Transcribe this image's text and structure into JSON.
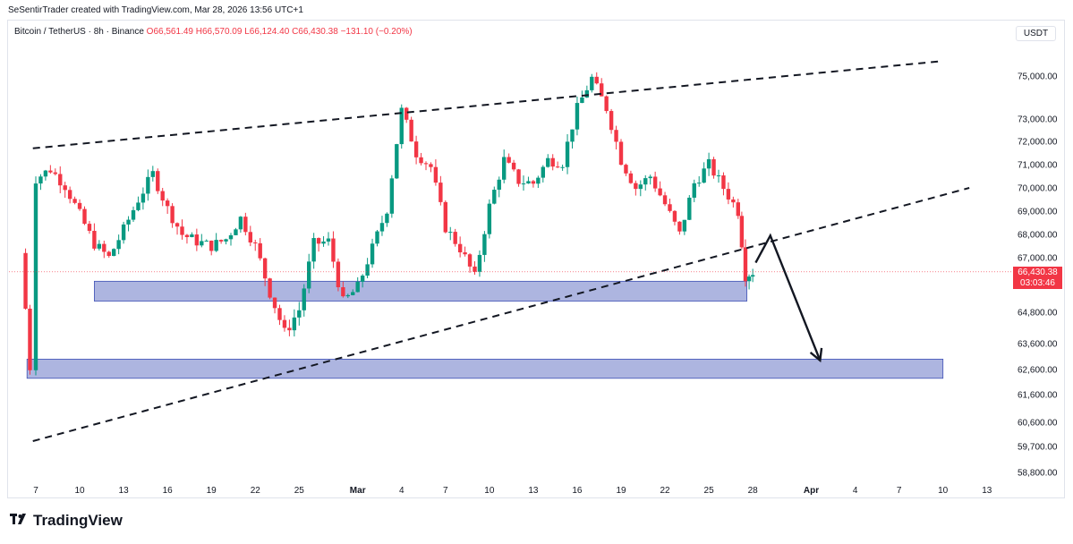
{
  "header": {
    "credit": "SeSentirTrader created with TradingView.com, Mar 28, 2026 13:56 UTC+1"
  },
  "legend": {
    "symbol": "Bitcoin / TetherUS · 8h · Binance",
    "open": "O66,561.49",
    "high": "H66,570.09",
    "low": "L66,124.40",
    "close": "C66,430.38",
    "change": "−131.10 (−0.20%)"
  },
  "currency_button": "USDT",
  "last_price": {
    "price": "66,430.38",
    "countdown": "03:03:46"
  },
  "brand": {
    "name": "TradingView"
  },
  "colors": {
    "up": "#089981",
    "down": "#f23645",
    "zone": "#9fa8da",
    "zone_border": "#3f51b5",
    "line": "#131722"
  },
  "chart_data": {
    "type": "candlestick",
    "title": "Bitcoin / TetherUS · 8h · Binance",
    "y_axis_ticks": [
      75000,
      73000,
      72000,
      71000,
      70000,
      69000,
      68000,
      67000,
      64800,
      63600,
      62600,
      61600,
      60600,
      59700,
      58800
    ],
    "y_axis_labels": [
      "75,000.00",
      "73,000.00",
      "72,000.00",
      "71,000.00",
      "70,000.00",
      "69,000.00",
      "68,000.00",
      "67,000.00",
      "64,800.00",
      "63,600.00",
      "62,600.00",
      "61,600.00",
      "60,600.00",
      "59,700.00",
      "58,800.00"
    ],
    "x_axis_labels": [
      "7",
      "10",
      "13",
      "16",
      "19",
      "22",
      "25",
      "Mar",
      "4",
      "7",
      "10",
      "13",
      "16",
      "19",
      "22",
      "25",
      "28",
      "Apr",
      "4",
      "7",
      "10",
      "13"
    ],
    "x_axis_dates": [
      "Feb 7",
      "Feb 10",
      "Feb 13",
      "Feb 16",
      "Feb 19",
      "Feb 22",
      "Feb 25",
      "Mar 1",
      "Mar 4",
      "Mar 7",
      "Mar 10",
      "Mar 13",
      "Mar 16",
      "Mar 19",
      "Mar 22",
      "Mar 25",
      "Mar 28",
      "Apr 1",
      "Apr 4",
      "Apr 7",
      "Apr 10",
      "Apr 13"
    ],
    "ylim": [
      58300,
      76100
    ],
    "key_price_path": [
      {
        "date": "Feb 6",
        "price": 67200
      },
      {
        "date": "Feb 6.6",
        "price": 62700
      },
      {
        "date": "Feb 7",
        "price": 70400
      },
      {
        "date": "Feb 8",
        "price": 70800
      },
      {
        "date": "Feb 9",
        "price": 70100
      },
      {
        "date": "Feb 11",
        "price": 67600
      },
      {
        "date": "Feb 12",
        "price": 67000
      },
      {
        "date": "Feb 13",
        "price": 68200
      },
      {
        "date": "Feb 14",
        "price": 69500
      },
      {
        "date": "Feb 15",
        "price": 70600
      },
      {
        "date": "Feb 16",
        "price": 69100
      },
      {
        "date": "Feb 17",
        "price": 68000
      },
      {
        "date": "Feb 18",
        "price": 67700
      },
      {
        "date": "Feb 19",
        "price": 67500
      },
      {
        "date": "Feb 20",
        "price": 67800
      },
      {
        "date": "Feb 21",
        "price": 68700
      },
      {
        "date": "Feb 22",
        "price": 67500
      },
      {
        "date": "Feb 23",
        "price": 65600
      },
      {
        "date": "Feb 24",
        "price": 64000
      },
      {
        "date": "Feb 25",
        "price": 64900
      },
      {
        "date": "Feb 26",
        "price": 67600
      },
      {
        "date": "Feb 27",
        "price": 67700
      },
      {
        "date": "Feb 28",
        "price": 65200
      },
      {
        "date": "Mar 1",
        "price": 65800
      },
      {
        "date": "Mar 2",
        "price": 67400
      },
      {
        "date": "Mar 3",
        "price": 69100
      },
      {
        "date": "Mar 4",
        "price": 73400
      },
      {
        "date": "Mar 5",
        "price": 71500
      },
      {
        "date": "Mar 6",
        "price": 70900
      },
      {
        "date": "Mar 7",
        "price": 68300
      },
      {
        "date": "Mar 8",
        "price": 67400
      },
      {
        "date": "Mar 9",
        "price": 66200
      },
      {
        "date": "Mar 10",
        "price": 69200
      },
      {
        "date": "Mar 11",
        "price": 71200
      },
      {
        "date": "Mar 12",
        "price": 70300
      },
      {
        "date": "Mar 13",
        "price": 70200
      },
      {
        "date": "Mar 14",
        "price": 71200
      },
      {
        "date": "Mar 15",
        "price": 71100
      },
      {
        "date": "Mar 16",
        "price": 73500
      },
      {
        "date": "Mar 17",
        "price": 74900
      },
      {
        "date": "Mar 18",
        "price": 73500
      },
      {
        "date": "Mar 19",
        "price": 71200
      },
      {
        "date": "Mar 20",
        "price": 70000
      },
      {
        "date": "Mar 21",
        "price": 70500
      },
      {
        "date": "Mar 22",
        "price": 69300
      },
      {
        "date": "Mar 23",
        "price": 68000
      },
      {
        "date": "Mar 24",
        "price": 70200
      },
      {
        "date": "Mar 25",
        "price": 71000
      },
      {
        "date": "Mar 26",
        "price": 70000
      },
      {
        "date": "Mar 27",
        "price": 69000
      },
      {
        "date": "Mar 27.5",
        "price": 66300
      },
      {
        "date": "Mar 28",
        "price": 66430
      }
    ],
    "zones": [
      {
        "from_date": "Feb 11",
        "to_date": "Mar 27.6",
        "price_low": 65250,
        "price_high": 66050
      },
      {
        "from_date": "Feb 6.4",
        "to_date": "Apr 10",
        "price_low": 62250,
        "price_high": 63000
      }
    ],
    "trendlines": [
      {
        "style": "dashed",
        "from": {
          "date": "Feb 6.8",
          "price": 71700
        },
        "to": {
          "date": "Apr 10",
          "price": 75700
        }
      },
      {
        "style": "dashed",
        "from": {
          "date": "Feb 6.8",
          "price": 59900
        },
        "to": {
          "date": "Apr 11.8",
          "price": 70000
        }
      }
    ],
    "projection": [
      {
        "date": "Mar 28.2",
        "price": 66800
      },
      {
        "date": "Mar 29.2",
        "price": 67950
      },
      {
        "date": "Apr 1.6",
        "price": 62950
      }
    ],
    "last_price": 66430.38
  }
}
